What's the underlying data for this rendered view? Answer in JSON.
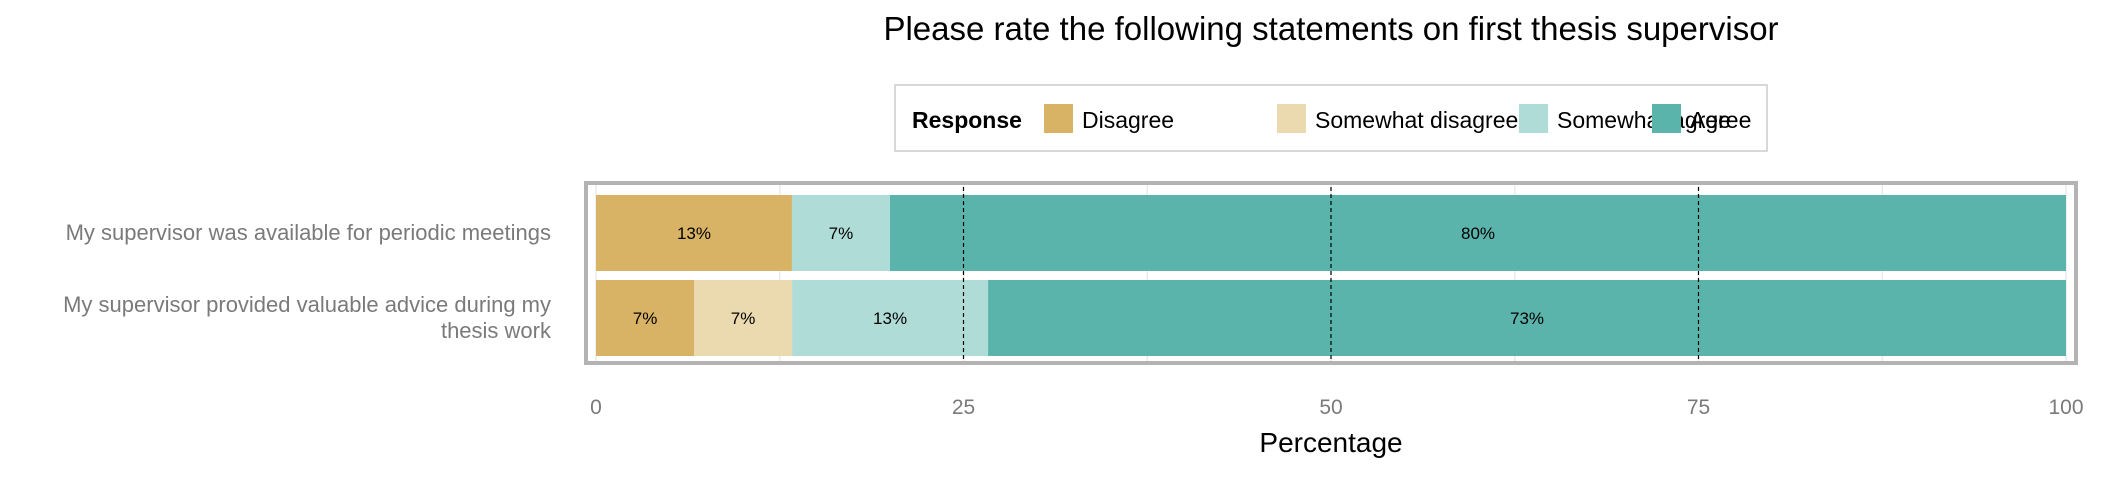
{
  "chart_data": {
    "type": "bar",
    "orientation": "horizontal",
    "stacked": true,
    "title": "Please rate the following statements on first thesis supervisor",
    "xlabel": "Percentage",
    "ylabel": "",
    "xlim": [
      0,
      100
    ],
    "x_ticks": [
      0,
      25,
      50,
      75,
      100
    ],
    "legend": {
      "title": "Response",
      "placement": "top"
    },
    "categories": [
      [
        "My supervisor was available for periodic meetings"
      ],
      [
        "My supervisor provided valuable advice during my",
        "thesis work"
      ]
    ],
    "series": [
      {
        "name": "Disagree",
        "color": "#d8b365",
        "values": [
          13.33,
          6.67
        ],
        "labels": [
          "13%",
          "7%"
        ]
      },
      {
        "name": "Somewhat disagree",
        "color": "#ebd9b0",
        "values": [
          0,
          6.67
        ],
        "labels": [
          "",
          "7%"
        ]
      },
      {
        "name": "Somewhat agree",
        "color": "#b0dcd7",
        "values": [
          6.67,
          13.33
        ],
        "labels": [
          "7%",
          "13%"
        ]
      },
      {
        "name": "Agree",
        "color": "#5ab4ac",
        "values": [
          80,
          73.33
        ],
        "labels": [
          "80%",
          "73%"
        ]
      }
    ],
    "grid": true,
    "reference_lines": [
      25,
      50,
      75
    ]
  }
}
